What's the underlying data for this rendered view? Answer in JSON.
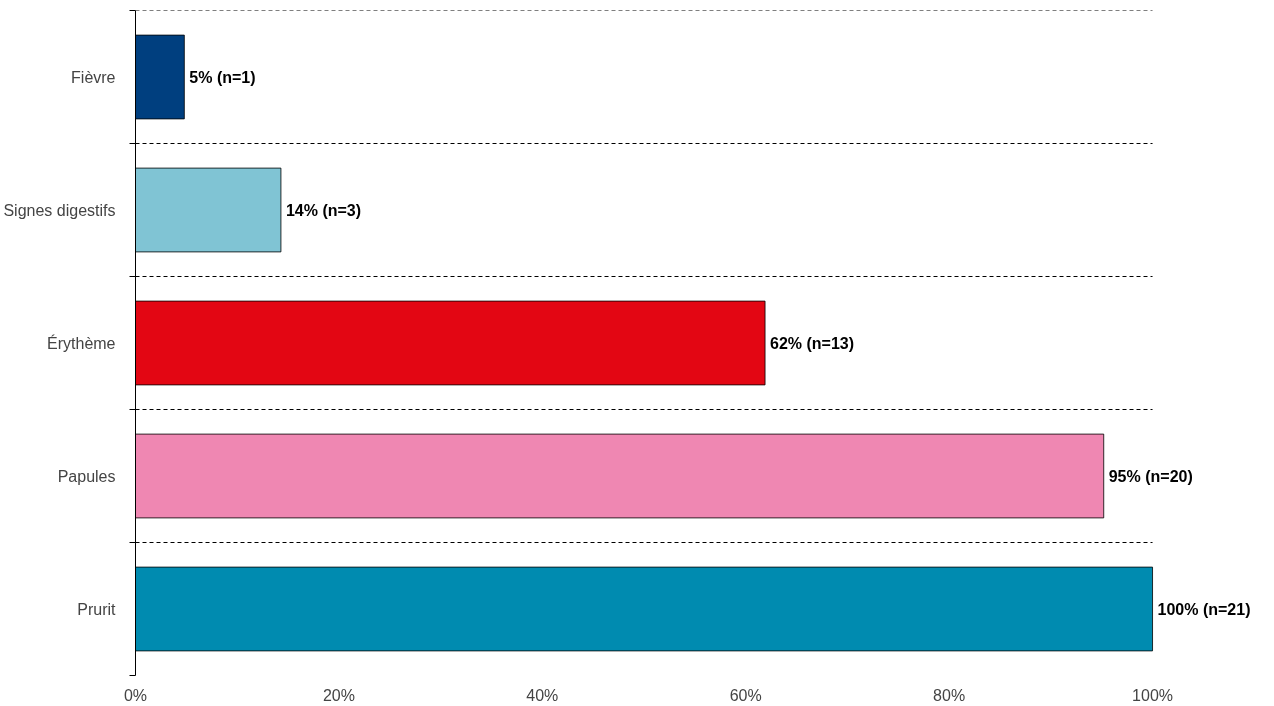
{
  "chart_data": {
    "type": "bar",
    "orientation": "horizontal",
    "categories": [
      "Fièvre",
      "Signes digestifs",
      "Érythème",
      "Papules",
      "Prurit"
    ],
    "values": [
      4.8,
      14.3,
      61.9,
      95.2,
      100
    ],
    "colors": [
      "#003f7f",
      "#80c4d4",
      "#e30613",
      "#ef87b2",
      "#008bb0"
    ],
    "value_labels": [
      "5% (n=1)",
      "14% (n=3)",
      "62% (n=13)",
      "95% (n=20)",
      "100% (n=21)"
    ],
    "xlim": [
      0,
      100
    ],
    "xticks": [
      {
        "value": 0,
        "label": "0%"
      },
      {
        "value": 20,
        "label": "20%"
      },
      {
        "value": 40,
        "label": "40%"
      },
      {
        "value": 60,
        "label": "60%"
      },
      {
        "value": 80,
        "label": "80%"
      },
      {
        "value": 100,
        "label": "100%"
      }
    ],
    "grid": "y"
  }
}
